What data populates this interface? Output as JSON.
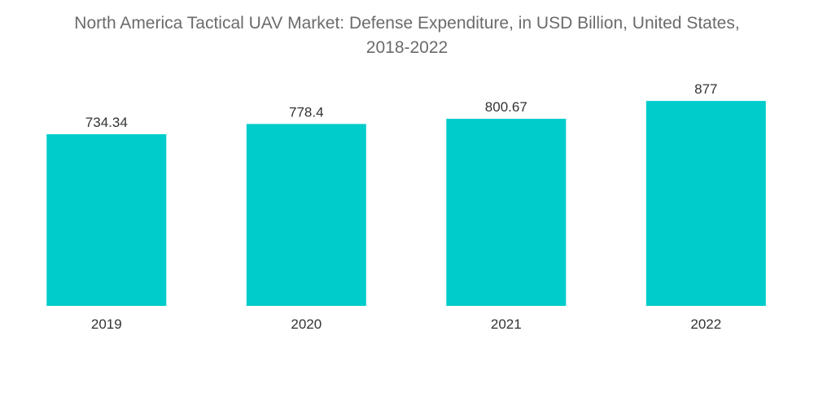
{
  "title_line1": "North America Tactical UAV Market: Defense Expenditure, in USD Billion, United States,",
  "title_line2": "2018-2022",
  "chart_data": {
    "type": "bar",
    "title": "North America Tactical UAV Market: Defense Expenditure, in USD Billion, United States, 2018-2022",
    "categories": [
      "2019",
      "2020",
      "2021",
      "2022"
    ],
    "values": [
      734.34,
      778.4,
      800.67,
      877
    ],
    "data_labels": [
      "734.34",
      "778.4",
      "800.67",
      "877"
    ],
    "bar_color": "#00cccc",
    "ylim": [
      0,
      1100
    ],
    "grid": false,
    "legend": "none"
  }
}
